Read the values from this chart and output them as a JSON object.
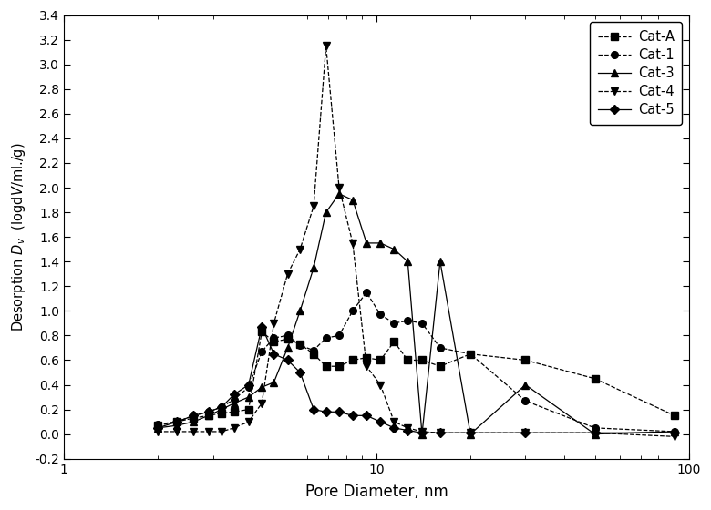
{
  "title": "",
  "xlabel": "Pore Diameter, nm",
  "ylabel": "Desorption Dv  (logdV/ml./g)",
  "xlim": [
    1,
    100
  ],
  "ylim": [
    -0.2,
    3.4
  ],
  "yticks": [
    -0.2,
    0.0,
    0.2,
    0.4,
    0.6,
    0.8,
    1.0,
    1.2,
    1.4,
    1.6,
    1.8,
    2.0,
    2.2,
    2.4,
    2.6,
    2.8,
    3.0,
    3.2,
    3.4
  ],
  "series": {
    "Cat-A": {
      "marker": "s",
      "linestyle": "--",
      "color": "#000000",
      "x": [
        2.0,
        2.3,
        2.6,
        2.9,
        3.2,
        3.5,
        3.9,
        4.3,
        4.7,
        5.2,
        5.7,
        6.3,
        6.9,
        7.6,
        8.4,
        9.3,
        10.3,
        11.4,
        12.6,
        14.0,
        16.0,
        20.0,
        30.0,
        50.0,
        90.0
      ],
      "y": [
        0.07,
        0.1,
        0.13,
        0.15,
        0.17,
        0.18,
        0.2,
        0.83,
        0.75,
        0.77,
        0.73,
        0.65,
        0.55,
        0.55,
        0.6,
        0.62,
        0.6,
        0.75,
        0.6,
        0.6,
        0.55,
        0.65,
        0.6,
        0.45,
        0.15
      ]
    },
    "Cat-1": {
      "marker": "o",
      "linestyle": "--",
      "color": "#000000",
      "x": [
        2.0,
        2.3,
        2.6,
        2.9,
        3.2,
        3.5,
        3.9,
        4.3,
        4.7,
        5.2,
        5.7,
        6.3,
        6.9,
        7.6,
        8.4,
        9.3,
        10.3,
        11.4,
        12.6,
        14.0,
        16.0,
        20.0,
        30.0,
        50.0,
        90.0
      ],
      "y": [
        0.08,
        0.1,
        0.15,
        0.18,
        0.22,
        0.28,
        0.38,
        0.67,
        0.78,
        0.8,
        0.72,
        0.68,
        0.78,
        0.8,
        1.0,
        1.15,
        0.97,
        0.9,
        0.92,
        0.9,
        0.7,
        0.65,
        0.27,
        0.05,
        0.02
      ]
    },
    "Cat-3": {
      "marker": "^",
      "linestyle": "-",
      "color": "#000000",
      "x": [
        2.0,
        2.3,
        2.6,
        2.9,
        3.2,
        3.5,
        3.9,
        4.3,
        4.7,
        5.2,
        5.7,
        6.3,
        6.9,
        7.6,
        8.4,
        9.3,
        10.3,
        11.4,
        12.6,
        14.0,
        16.0,
        20.0,
        30.0,
        50.0,
        90.0
      ],
      "y": [
        0.05,
        0.07,
        0.1,
        0.15,
        0.2,
        0.25,
        0.3,
        0.38,
        0.42,
        0.7,
        1.0,
        1.35,
        1.8,
        1.95,
        1.9,
        1.55,
        1.55,
        1.5,
        1.4,
        0.0,
        1.4,
        0.0,
        0.4,
        0.0,
        0.02
      ]
    },
    "Cat-4": {
      "marker": "v",
      "linestyle": "--",
      "color": "#000000",
      "x": [
        2.0,
        2.3,
        2.6,
        2.9,
        3.2,
        3.5,
        3.9,
        4.3,
        4.7,
        5.2,
        5.7,
        6.3,
        6.9,
        7.6,
        8.4,
        9.3,
        10.3,
        11.4,
        12.6,
        14.0,
        16.0,
        20.0,
        30.0,
        50.0,
        90.0
      ],
      "y": [
        0.02,
        0.02,
        0.02,
        0.02,
        0.02,
        0.05,
        0.1,
        0.25,
        0.9,
        1.3,
        1.5,
        1.85,
        3.15,
        2.0,
        1.55,
        0.55,
        0.4,
        0.1,
        0.05,
        0.02,
        0.01,
        0.01,
        0.01,
        0.01,
        -0.02
      ]
    },
    "Cat-5": {
      "marker": "D",
      "linestyle": "-",
      "color": "#000000",
      "x": [
        2.0,
        2.3,
        2.6,
        2.9,
        3.2,
        3.5,
        3.9,
        4.3,
        4.7,
        5.2,
        5.7,
        6.3,
        6.9,
        7.6,
        8.4,
        9.3,
        10.3,
        11.4,
        12.6,
        14.0,
        16.0,
        20.0,
        30.0,
        50.0,
        90.0
      ],
      "y": [
        0.05,
        0.1,
        0.15,
        0.18,
        0.22,
        0.32,
        0.4,
        0.87,
        0.65,
        0.6,
        0.5,
        0.2,
        0.18,
        0.18,
        0.15,
        0.15,
        0.1,
        0.05,
        0.03,
        0.01,
        0.01,
        0.01,
        0.01,
        0.01,
        0.01
      ]
    }
  },
  "legend_labels": [
    "Cat-A",
    "Cat-1",
    "Cat-3",
    "Cat-4",
    "Cat-5"
  ],
  "background_color": "#ffffff",
  "figwidth": 7.8,
  "figheight": 5.6
}
